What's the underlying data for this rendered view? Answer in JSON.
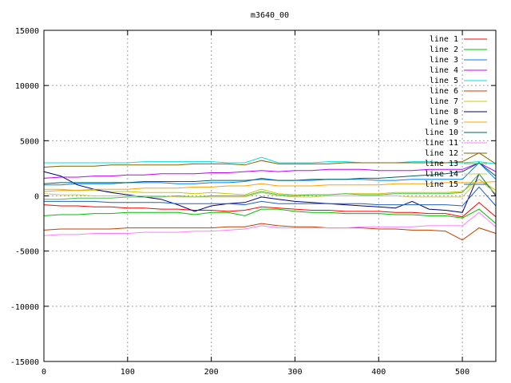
{
  "chart_data": {
    "type": "line",
    "title": "m3640_00",
    "xlabel": "",
    "ylabel": "",
    "xlim": [
      0,
      540
    ],
    "ylim": [
      -15000,
      15000
    ],
    "x_ticks": [
      0,
      100,
      200,
      300,
      400,
      500
    ],
    "y_ticks": [
      -15000,
      -10000,
      -5000,
      0,
      5000,
      10000,
      15000
    ],
    "grid": true,
    "legend_position": "top-right",
    "x": [
      0,
      20,
      40,
      60,
      80,
      100,
      120,
      140,
      160,
      180,
      200,
      220,
      240,
      260,
      280,
      300,
      320,
      340,
      360,
      380,
      400,
      420,
      440,
      460,
      480,
      500,
      520,
      540
    ],
    "series": [
      {
        "name": "line 1",
        "color": "#ff0000",
        "values": [
          -800,
          -900,
          -900,
          -1000,
          -1000,
          -1100,
          -1100,
          -1200,
          -1200,
          -1300,
          -1300,
          -1400,
          -1300,
          -1000,
          -1100,
          -1200,
          -1300,
          -1300,
          -1400,
          -1400,
          -1400,
          -1500,
          -1500,
          -1600,
          -1600,
          -1900,
          -600,
          -1900
        ]
      },
      {
        "name": "line 2",
        "color": "#00c000",
        "values": [
          -1800,
          -1700,
          -1700,
          -1600,
          -1600,
          -1500,
          -1500,
          -1500,
          -1500,
          -1700,
          -1500,
          -1500,
          -1800,
          -1200,
          -1200,
          -1400,
          -1500,
          -1500,
          -1600,
          -1600,
          -1600,
          -1700,
          -1700,
          -1800,
          -1800,
          -2000,
          -1200,
          -2500
        ]
      },
      {
        "name": "line 3",
        "color": "#0080ff",
        "values": [
          1000,
          1000,
          1100,
          1100,
          1100,
          1200,
          1200,
          1200,
          1100,
          1100,
          1200,
          1200,
          1300,
          1600,
          1400,
          1400,
          1400,
          1500,
          1500,
          1500,
          1400,
          1400,
          1500,
          1500,
          1500,
          1500,
          3000,
          1500
        ]
      },
      {
        "name": "line 4",
        "color": "#c000ff",
        "values": [
          1600,
          1700,
          1700,
          1800,
          1800,
          1900,
          1900,
          2000,
          2000,
          2000,
          2100,
          2100,
          2200,
          2300,
          2200,
          2300,
          2300,
          2400,
          2400,
          2400,
          2300,
          2300,
          2300,
          2400,
          2400,
          2400,
          3000,
          2200
        ]
      },
      {
        "name": "line 5",
        "color": "#00e0e0",
        "values": [
          3000,
          3000,
          3000,
          3000,
          3000,
          3000,
          3100,
          3100,
          3100,
          3100,
          3100,
          3000,
          3000,
          3500,
          3000,
          3000,
          3000,
          3100,
          3100,
          3000,
          3000,
          3000,
          3100,
          3100,
          3000,
          3000,
          3100,
          2900
        ]
      },
      {
        "name": "line 6",
        "color": "#c04000",
        "values": [
          -3100,
          -3000,
          -3000,
          -3000,
          -3000,
          -2900,
          -2900,
          -2900,
          -2900,
          -2900,
          -2900,
          -2800,
          -2800,
          -2500,
          -2700,
          -2800,
          -2800,
          -2900,
          -2900,
          -2900,
          -3000,
          -3000,
          -3100,
          -3100,
          -3200,
          -4000,
          -2900,
          -3400
        ]
      },
      {
        "name": "line 7",
        "color": "#c8c800",
        "values": [
          600,
          600,
          500,
          500,
          400,
          400,
          300,
          300,
          300,
          200,
          300,
          200,
          100,
          600,
          200,
          100,
          100,
          100,
          200,
          200,
          200,
          300,
          300,
          300,
          300,
          400,
          1500,
          500
        ]
      },
      {
        "name": "line 8",
        "color": "#000080",
        "values": [
          2200,
          1800,
          1000,
          600,
          300,
          100,
          -100,
          -300,
          -800,
          -1400,
          -900,
          -700,
          -600,
          -100,
          -300,
          -500,
          -600,
          -700,
          -800,
          -900,
          -1000,
          -1100,
          -500,
          -1200,
          -1300,
          -1500,
          2000,
          0
        ]
      },
      {
        "name": "line 9",
        "color": "#ffa000",
        "values": [
          400,
          500,
          500,
          600,
          600,
          600,
          700,
          700,
          700,
          800,
          800,
          900,
          900,
          1100,
          900,
          900,
          900,
          1000,
          1000,
          1000,
          1000,
          1100,
          1100,
          1100,
          1200,
          1200,
          1200,
          1300
        ]
      },
      {
        "name": "line 10",
        "color": "#006464",
        "values": [
          1100,
          1200,
          1200,
          1200,
          1200,
          1200,
          1300,
          1300,
          1300,
          1300,
          1400,
          1400,
          1400,
          1500,
          1400,
          1400,
          1500,
          1500,
          1500,
          1600,
          1600,
          1700,
          1800,
          1900,
          2000,
          2200,
          3000,
          1800
        ]
      },
      {
        "name": "line 11",
        "color": "#ff80ff",
        "values": [
          -3600,
          -3500,
          -3500,
          -3400,
          -3400,
          -3400,
          -3300,
          -3300,
          -3300,
          -3200,
          -3200,
          -3100,
          -3000,
          -2700,
          -2900,
          -2900,
          -2900,
          -2900,
          -2900,
          -2800,
          -2800,
          -2800,
          -2800,
          -2700,
          -2700,
          -2700,
          -1500,
          -2800
        ]
      },
      {
        "name": "line 12",
        "color": "#806400",
        "values": [
          2600,
          2700,
          2700,
          2700,
          2800,
          2800,
          2800,
          2800,
          2800,
          2900,
          2900,
          2900,
          2800,
          3200,
          2900,
          2900,
          2900,
          2900,
          3000,
          3000,
          3000,
          3000,
          3000,
          3000,
          3000,
          3100,
          3900,
          2900
        ]
      },
      {
        "name": "line 13",
        "color": "#40c040",
        "values": [
          -300,
          -300,
          -200,
          -200,
          -200,
          -100,
          -100,
          -100,
          0,
          -100,
          0,
          0,
          0,
          400,
          100,
          0,
          100,
          100,
          200,
          100,
          100,
          200,
          200,
          200,
          200,
          300,
          2000,
          100
        ]
      },
      {
        "name": "line 14",
        "color": "#c8c864",
        "values": [
          200,
          100,
          100,
          0,
          0,
          0,
          0,
          0,
          -100,
          -100,
          -100,
          -100,
          -100,
          300,
          0,
          -100,
          -100,
          0,
          0,
          0,
          0,
          0,
          -100,
          -100,
          -100,
          -100,
          1500,
          200
        ]
      },
      {
        "name": "line 15",
        "color": "#2060c0",
        "values": [
          -500,
          -500,
          -500,
          -500,
          -600,
          -600,
          -600,
          -600,
          -700,
          -700,
          -700,
          -700,
          -800,
          -500,
          -700,
          -700,
          -700,
          -700,
          -700,
          -700,
          -800,
          -800,
          -800,
          -800,
          -800,
          -900,
          800,
          -900
        ]
      }
    ]
  }
}
